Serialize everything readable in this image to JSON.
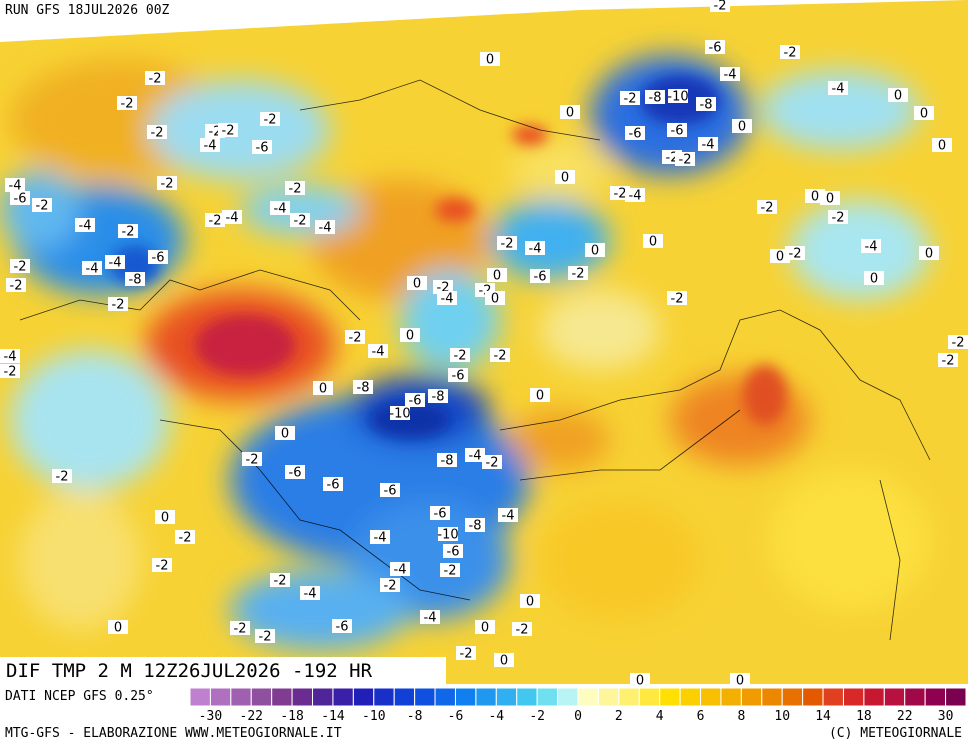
{
  "header": {
    "run": "RUN GFS 18JUL2026 00Z"
  },
  "map": {
    "title": "DIF TMP 2 M 12Z26JUL2026 -192 HR",
    "contour_labels": [
      0,
      -2,
      -2,
      -2,
      -2,
      -2,
      -2,
      -4,
      -6,
      -2,
      -2,
      -4,
      -6,
      -2,
      -4,
      -2,
      -2,
      -4,
      -4,
      -2,
      -4,
      -6,
      -4,
      -4,
      -8,
      -2,
      -2,
      -2,
      -4,
      -2,
      -4,
      0,
      0,
      -8,
      -10,
      -6,
      -8,
      -6,
      -2,
      -2,
      0,
      0,
      -2,
      -6,
      -6,
      -6,
      -8,
      -4,
      -2,
      -6,
      -8,
      -4,
      -10,
      -6,
      -4,
      -4,
      -2,
      0,
      -2,
      -2,
      -2,
      -2,
      -4,
      -2,
      -4,
      -6,
      -2,
      -2,
      0,
      0,
      -2,
      0,
      -2,
      0,
      0,
      0,
      -2,
      -8,
      -10,
      -8,
      -6,
      -4,
      -6,
      -6,
      -4,
      0,
      -2,
      -2,
      -2,
      -4,
      -2,
      -4,
      0,
      0,
      0,
      0,
      0,
      -2,
      -2,
      -4,
      0,
      -2,
      0,
      0,
      -2,
      -4,
      0,
      -6,
      -2,
      0,
      0,
      0,
      -2,
      -4,
      -2,
      0,
      -2,
      -2,
      -2,
      -2,
      -2,
      0,
      0
    ]
  },
  "colorbar": {
    "colors": [
      "#c080d0",
      "#b070c0",
      "#a060b0",
      "#9050a0",
      "#803c90",
      "#6a2c90",
      "#50259a",
      "#3a20a8",
      "#2020b8",
      "#1830c8",
      "#1040d8",
      "#1050e0",
      "#1068e8",
      "#1080f0",
      "#2098f0",
      "#30b0f0",
      "#40c8f0",
      "#70e0f0",
      "#b8f4f4",
      "#fffcc0",
      "#fff59a",
      "#fff070",
      "#ffe840",
      "#ffe000",
      "#fcd000",
      "#f8c000",
      "#f4b000",
      "#f09c00",
      "#ec8800",
      "#e87000",
      "#e45800",
      "#e04020",
      "#d82828",
      "#c81830",
      "#b81040",
      "#a00848",
      "#900050",
      "#7a0050"
    ],
    "ticks": [
      -30,
      -22,
      -18,
      -14,
      -10,
      -8,
      -6,
      -4,
      -2,
      0,
      2,
      4,
      6,
      8,
      10,
      14,
      18,
      22,
      30
    ]
  },
  "footer": {
    "source": "DATI NCEP GFS 0.25°",
    "credit": "MTG-GFS - ELABORAZIONE WWW.METEOGIORNALE.IT",
    "copyright": "(C) METEOGIORNALE"
  }
}
